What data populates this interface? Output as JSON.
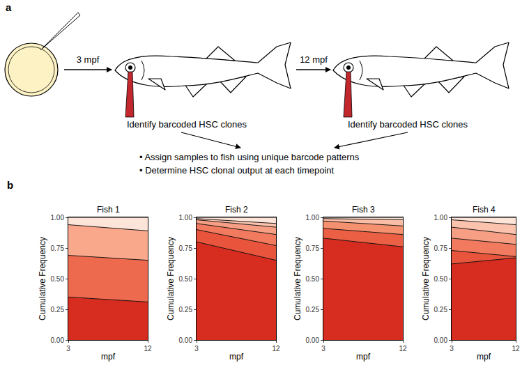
{
  "panel_a": {
    "label": "a",
    "timepoints": [
      "3 mpf",
      "12 mpf"
    ],
    "steps": [
      "Identify barcoded HSC clones",
      "Identify barcoded HSC clones"
    ],
    "bullets": [
      "• Assign samples to fish using unique barcode patterns",
      "• Determine HSC clonal output at each timepoint"
    ]
  },
  "panel_b": {
    "label": "b"
  },
  "chart_data": [
    {
      "type": "area",
      "stacked": true,
      "grid": false,
      "title": "Fish 1",
      "x_label": "mpf",
      "y_label": "Cumulative Frequency",
      "x": [
        3,
        12
      ],
      "xlim": [
        3,
        12
      ],
      "xticks": [
        3,
        12
      ],
      "ylim": [
        0,
        1
      ],
      "yticks": [
        {
          "value": 0,
          "label": "0.00"
        },
        {
          "value": 0.25,
          "label": "0.25"
        },
        {
          "value": 0.5,
          "label": "0.50"
        },
        {
          "value": 0.75,
          "label": "0.75"
        },
        {
          "value": 1,
          "label": "1.00"
        }
      ],
      "series": [
        {
          "color": "#d62d20",
          "values": [
            0.35,
            0.31
          ]
        },
        {
          "color": "#ee6a4e",
          "values": [
            0.34,
            0.34
          ]
        },
        {
          "color": "#f9a88c",
          "values": [
            0.25,
            0.24
          ]
        },
        {
          "color": "#fde4d8",
          "values": [
            0.06,
            0.11
          ]
        }
      ]
    },
    {
      "type": "area",
      "stacked": true,
      "grid": false,
      "title": "Fish 2",
      "x_label": "mpf",
      "y_label": "Cumulative Frequency",
      "x": [
        3,
        12
      ],
      "xlim": [
        3,
        12
      ],
      "xticks": [
        3,
        12
      ],
      "ylim": [
        0,
        1
      ],
      "yticks": [
        {
          "value": 0,
          "label": "0.00"
        },
        {
          "value": 0.25,
          "label": "0.25"
        },
        {
          "value": 0.5,
          "label": "0.50"
        },
        {
          "value": 0.75,
          "label": "0.75"
        },
        {
          "value": 1,
          "label": "1.00"
        }
      ],
      "series": [
        {
          "color": "#d62d20",
          "values": [
            0.8,
            0.65
          ]
        },
        {
          "color": "#e8553c",
          "values": [
            0.1,
            0.12
          ]
        },
        {
          "color": "#f27a5e",
          "values": [
            0.05,
            0.09
          ]
        },
        {
          "color": "#f79f84",
          "values": [
            0.03,
            0.06
          ]
        },
        {
          "color": "#fbc3ad",
          "values": [
            0.01,
            0.03
          ]
        },
        {
          "color": "#fde4d8",
          "values": [
            0.01,
            0.05
          ]
        }
      ]
    },
    {
      "type": "area",
      "stacked": true,
      "grid": false,
      "title": "Fish 3",
      "x_label": "mpf",
      "y_label": "Cumulative Frequency",
      "x": [
        3,
        12
      ],
      "xlim": [
        3,
        12
      ],
      "xticks": [
        3,
        12
      ],
      "ylim": [
        0,
        1
      ],
      "yticks": [
        {
          "value": 0,
          "label": "0.00"
        },
        {
          "value": 0.25,
          "label": "0.25"
        },
        {
          "value": 0.5,
          "label": "0.50"
        },
        {
          "value": 0.75,
          "label": "0.75"
        },
        {
          "value": 1,
          "label": "1.00"
        }
      ],
      "series": [
        {
          "color": "#d62d20",
          "values": [
            0.83,
            0.76
          ]
        },
        {
          "color": "#eb5f45",
          "values": [
            0.08,
            0.1
          ]
        },
        {
          "color": "#f5916f",
          "values": [
            0.06,
            0.07
          ]
        },
        {
          "color": "#fabda5",
          "values": [
            0.02,
            0.05
          ]
        },
        {
          "color": "#fde4d8",
          "values": [
            0.01,
            0.02
          ]
        }
      ]
    },
    {
      "type": "area",
      "stacked": true,
      "grid": false,
      "title": "Fish 4",
      "x_label": "mpf",
      "y_label": "Cumulative Frequency",
      "x": [
        3,
        12
      ],
      "xlim": [
        3,
        12
      ],
      "xticks": [
        3,
        12
      ],
      "ylim": [
        0,
        1
      ],
      "yticks": [
        {
          "value": 0,
          "label": "0.00"
        },
        {
          "value": 0.25,
          "label": "0.25"
        },
        {
          "value": 0.5,
          "label": "0.50"
        },
        {
          "value": 0.75,
          "label": "0.75"
        },
        {
          "value": 1,
          "label": "1.00"
        }
      ],
      "series": [
        {
          "color": "#d62d20",
          "values": [
            0.62,
            0.67
          ]
        },
        {
          "color": "#e8553c",
          "values": [
            0.11,
            0.01
          ]
        },
        {
          "color": "#f27a5e",
          "values": [
            0.1,
            0.1
          ]
        },
        {
          "color": "#f79f84",
          "values": [
            0.09,
            0.08
          ]
        },
        {
          "color": "#fbc3ad",
          "values": [
            0.06,
            0.08
          ]
        },
        {
          "color": "#fde4d8",
          "values": [
            0.02,
            0.06
          ]
        }
      ]
    }
  ]
}
